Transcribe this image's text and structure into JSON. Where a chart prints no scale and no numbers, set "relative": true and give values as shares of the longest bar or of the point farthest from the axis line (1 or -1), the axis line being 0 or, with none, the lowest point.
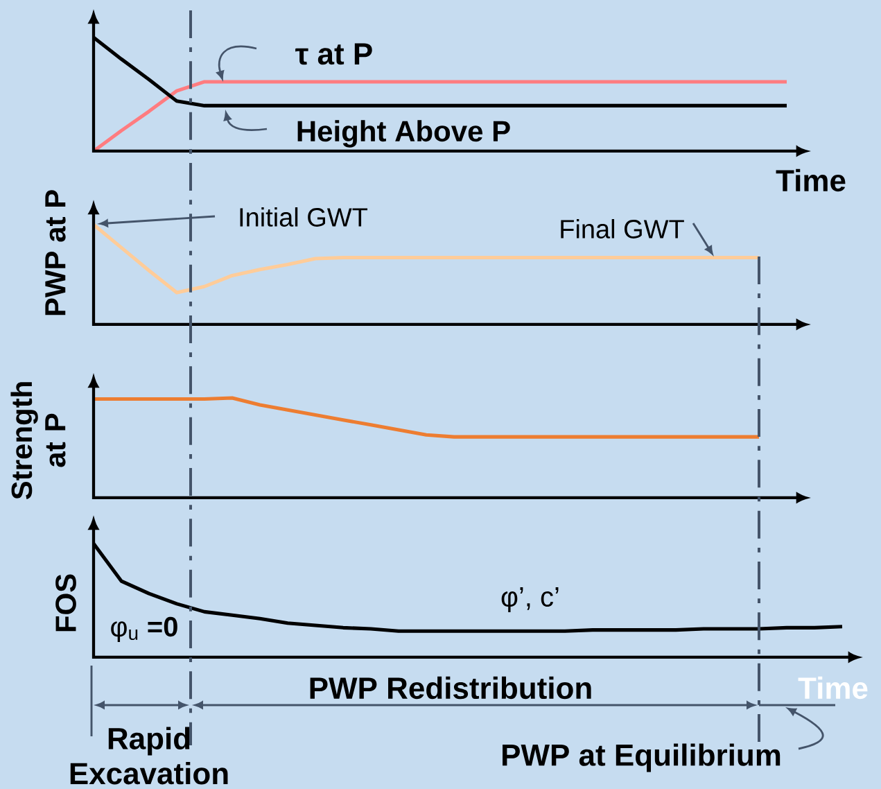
{
  "chart_data": [
    {
      "type": "line",
      "relative": true,
      "xlabel": "Time",
      "categories": [
        null,
        null,
        null,
        null,
        null,
        null,
        null,
        null,
        null,
        null,
        null,
        null,
        null,
        null,
        null,
        null,
        null,
        null,
        null,
        null,
        null,
        null,
        null,
        null,
        null,
        null,
        null,
        null
      ],
      "series": [
        {
          "name": "τ at P",
          "color": "#ff7c80",
          "values": [
            0,
            0.18,
            0.35,
            0.53,
            0.61,
            0.61,
            0.61,
            0.61,
            0.61,
            0.61,
            0.61,
            0.61,
            0.61,
            0.61,
            0.61,
            0.61,
            0.61,
            0.61,
            0.61,
            0.61,
            0.61,
            0.61,
            0.61,
            0.61,
            0.61,
            0.61,
            null,
            null
          ]
        },
        {
          "name": "Height Above P",
          "color": "#000000",
          "values": [
            1.0,
            0.81,
            0.63,
            0.44,
            0.4,
            0.4,
            0.4,
            0.4,
            0.4,
            0.4,
            0.4,
            0.4,
            0.4,
            0.4,
            0.4,
            0.4,
            0.4,
            0.4,
            0.4,
            0.4,
            0.4,
            0.4,
            0.4,
            0.4,
            0.4,
            0.4,
            null,
            null
          ]
        }
      ]
    },
    {
      "type": "line",
      "relative": true,
      "ylabel": "PWP  at  P",
      "categories": [
        null,
        null,
        null,
        null,
        null,
        null,
        null,
        null,
        null,
        null,
        null,
        null,
        null,
        null,
        null,
        null,
        null,
        null,
        null,
        null,
        null,
        null,
        null,
        null,
        null,
        null,
        null,
        null
      ],
      "series": [
        {
          "color": "#ffcc99",
          "values": [
            1.0,
            0.77,
            0.54,
            0.32,
            0.38,
            0.49,
            0.55,
            0.6,
            0.66,
            0.67,
            0.67,
            0.67,
            0.67,
            0.67,
            0.67,
            0.67,
            0.67,
            0.67,
            0.67,
            0.67,
            0.67,
            0.67,
            0.67,
            0.67,
            0.67,
            null,
            null,
            null
          ]
        }
      ],
      "annotations": [
        "Initial GWT",
        "Final GWT"
      ]
    },
    {
      "type": "line",
      "relative": true,
      "ylabel": "Strength at P",
      "categories": [
        null,
        null,
        null,
        null,
        null,
        null,
        null,
        null,
        null,
        null,
        null,
        null,
        null,
        null,
        null,
        null,
        null,
        null,
        null,
        null,
        null,
        null,
        null,
        null,
        null,
        null,
        null,
        null
      ],
      "series": [
        {
          "color": "#ed7d31",
          "values": [
            0.99,
            0.99,
            0.99,
            0.99,
            0.99,
            1.0,
            0.93,
            0.88,
            0.83,
            0.78,
            0.73,
            0.68,
            0.63,
            0.61,
            0.61,
            0.61,
            0.61,
            0.61,
            0.61,
            0.61,
            0.61,
            0.61,
            0.61,
            0.61,
            0.61,
            null,
            null,
            null
          ]
        }
      ]
    },
    {
      "type": "line",
      "relative": true,
      "ylabel": "FOS",
      "xlabel": "Time",
      "categories": [
        null,
        null,
        null,
        null,
        null,
        null,
        null,
        null,
        null,
        null,
        null,
        null,
        null,
        null,
        null,
        null,
        null,
        null,
        null,
        null,
        null,
        null,
        null,
        null,
        null,
        null,
        null,
        null
      ],
      "series": [
        {
          "color": "#000000",
          "values": [
            1.0,
            0.67,
            0.56,
            0.47,
            0.4,
            0.37,
            0.34,
            0.3,
            0.28,
            0.26,
            0.25,
            0.23,
            0.23,
            0.23,
            0.23,
            0.23,
            0.23,
            0.23,
            0.24,
            0.24,
            0.24,
            0.24,
            0.25,
            0.25,
            0.25,
            0.26,
            0.26,
            0.27
          ]
        }
      ],
      "annotations": [
        "φ’, c’",
        "φ$_{u}$ **=0**",
        "PWP  Redistribution",
        "Rapid Excavation",
        "PWP at Equilibrium"
      ]
    }
  ]
}
